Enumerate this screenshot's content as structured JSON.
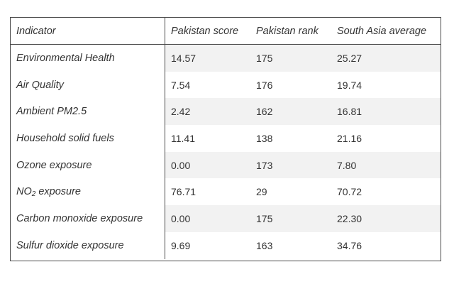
{
  "table": {
    "headers": [
      "Indicator",
      "Pakistan score",
      "Pakistan rank",
      "South Asia average"
    ],
    "rows": [
      {
        "indicator": "Environmental Health",
        "score": "14.57",
        "rank": "175",
        "avg": "25.27"
      },
      {
        "indicator": "Air Quality",
        "score": "7.54",
        "rank": "176",
        "avg": "19.74"
      },
      {
        "indicator": "Ambient PM2.5",
        "score": "2.42",
        "rank": "162",
        "avg": "16.81"
      },
      {
        "indicator": "Household solid fuels",
        "score": "11.41",
        "rank": "138",
        "avg": "21.16"
      },
      {
        "indicator": "Ozone exposure",
        "score": "0.00",
        "rank": "173",
        "avg": "7.80"
      },
      {
        "indicator_prefix": "NO",
        "indicator_sub": "2",
        "indicator_suffix": " exposure",
        "score": "76.71",
        "rank": "29",
        "avg": "70.72"
      },
      {
        "indicator": "Carbon monoxide exposure",
        "score": "0.00",
        "rank": "175",
        "avg": "22.30"
      },
      {
        "indicator": "Sulfur dioxide exposure",
        "score": "9.69",
        "rank": "163",
        "avg": "34.76"
      }
    ]
  }
}
